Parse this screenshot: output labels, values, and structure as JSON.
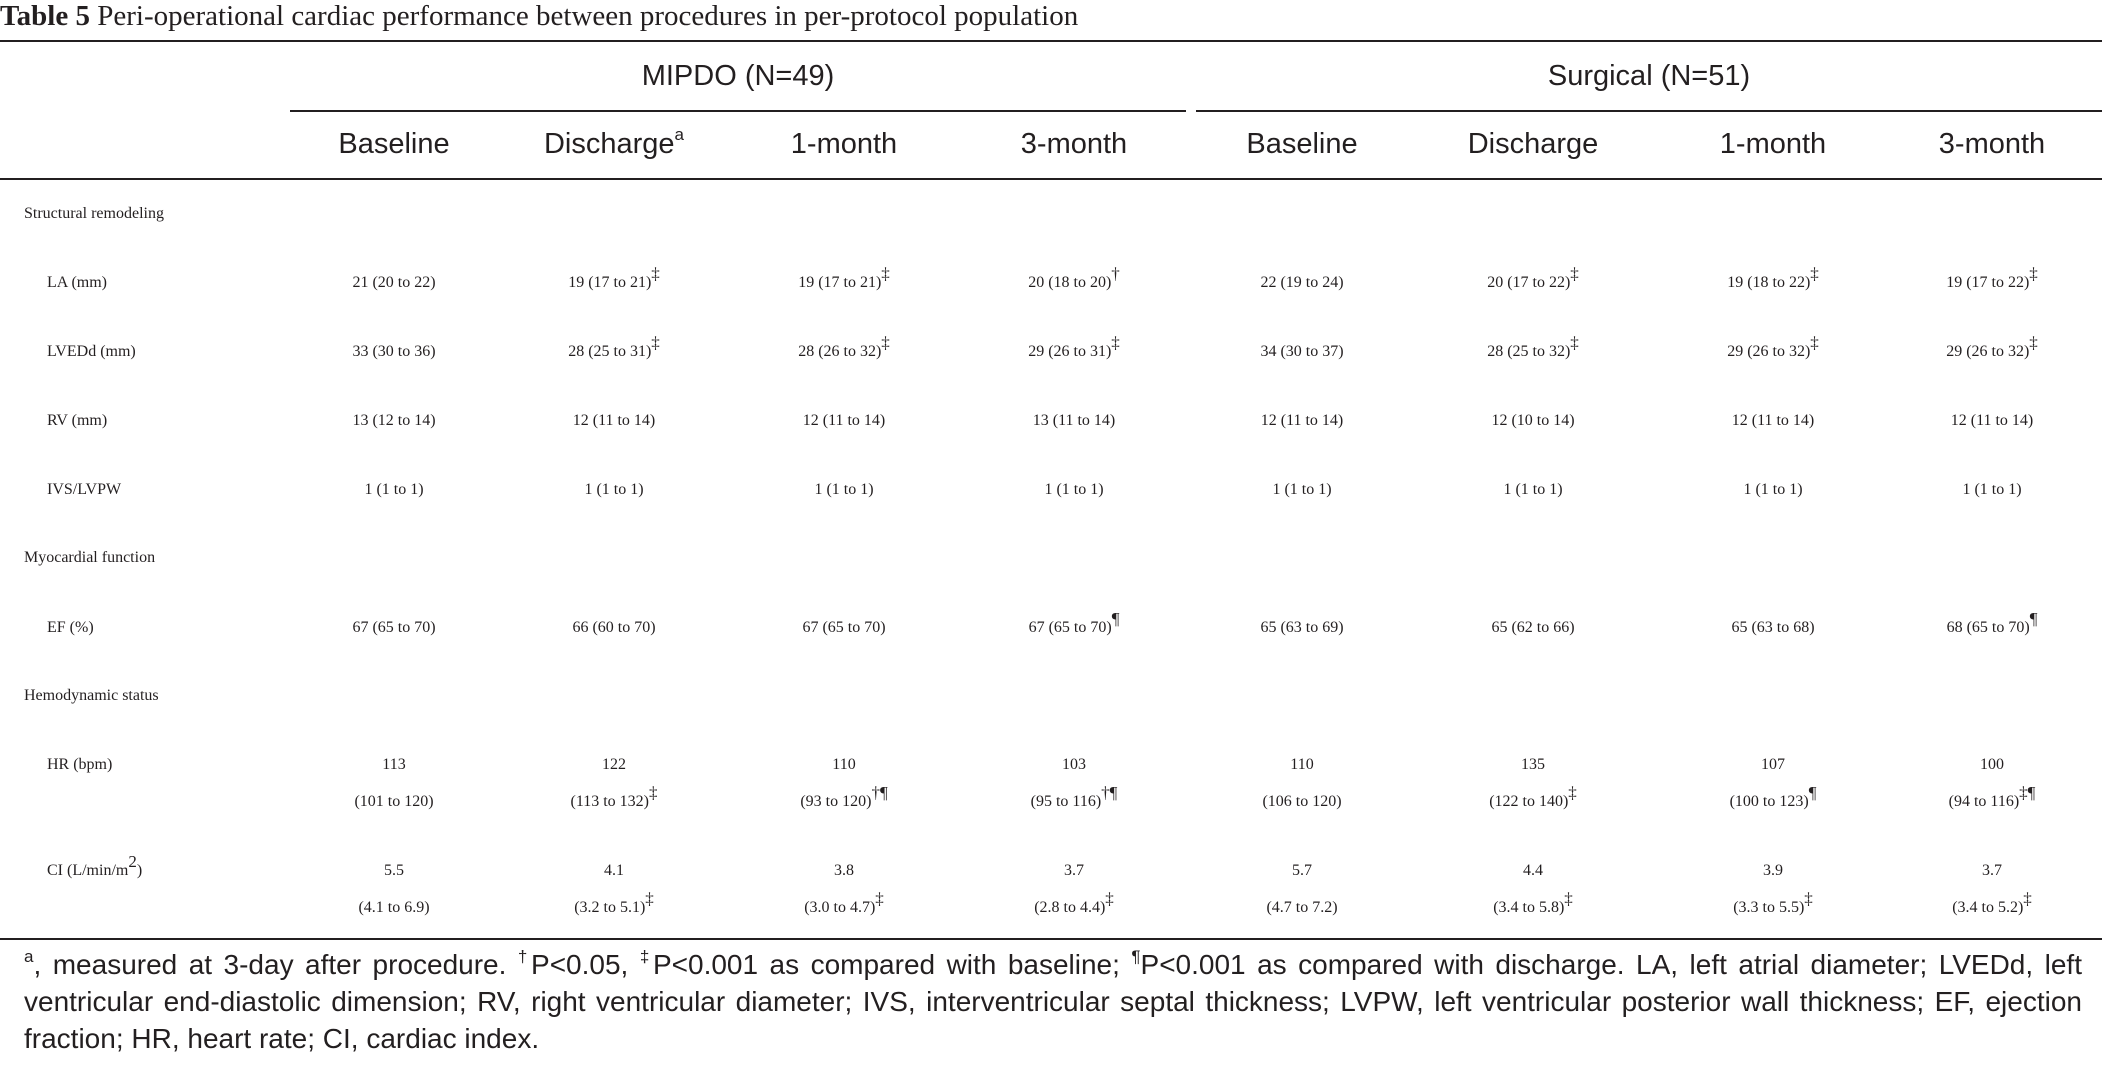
{
  "title": {
    "label": "Table 5",
    "text": "Peri-operational cardiac performance between procedures in per-protocol population"
  },
  "groups": [
    {
      "label": "MIPDO (N=49)"
    },
    {
      "label": "Surgical (N=51)"
    }
  ],
  "columns": [
    {
      "label": "Baseline",
      "sup": ""
    },
    {
      "label": "Discharge",
      "sup": "a"
    },
    {
      "label": "1-month",
      "sup": ""
    },
    {
      "label": "3-month",
      "sup": ""
    },
    {
      "label": "Baseline",
      "sup": ""
    },
    {
      "label": "Discharge",
      "sup": ""
    },
    {
      "label": "1-month",
      "sup": ""
    },
    {
      "label": "3-month",
      "sup": ""
    }
  ],
  "sections": [
    {
      "label": "Structural remodeling"
    },
    {
      "label": "Myocardial function"
    },
    {
      "label": "Hemodynamic status"
    }
  ],
  "rows": [
    {
      "label": "LA (mm)",
      "label_sup": "",
      "cells": [
        {
          "l1": "21 (20 to 22)",
          "l2": "",
          "sup": ""
        },
        {
          "l1": "19 (17 to 21)",
          "l2": "",
          "sup": "‡"
        },
        {
          "l1": "19 (17 to 21)",
          "l2": "",
          "sup": "‡"
        },
        {
          "l1": "20 (18 to 20)",
          "l2": "",
          "sup": "†"
        },
        {
          "l1": "22 (19 to 24)",
          "l2": "",
          "sup": ""
        },
        {
          "l1": "20 (17 to 22)",
          "l2": "",
          "sup": "‡"
        },
        {
          "l1": "19 (18 to 22)",
          "l2": "",
          "sup": "‡"
        },
        {
          "l1": "19 (17 to 22)",
          "l2": "",
          "sup": "‡"
        }
      ]
    },
    {
      "label": "LVEDd (mm)",
      "label_sup": "",
      "cells": [
        {
          "l1": "33 (30 to 36)",
          "l2": "",
          "sup": ""
        },
        {
          "l1": "28 (25 to 31)",
          "l2": "",
          "sup": "‡"
        },
        {
          "l1": "28 (26 to 32)",
          "l2": "",
          "sup": "‡"
        },
        {
          "l1": "29 (26 to 31)",
          "l2": "",
          "sup": "‡"
        },
        {
          "l1": "34 (30 to 37)",
          "l2": "",
          "sup": ""
        },
        {
          "l1": "28 (25 to 32)",
          "l2": "",
          "sup": "‡"
        },
        {
          "l1": "29 (26 to 32)",
          "l2": "",
          "sup": "‡"
        },
        {
          "l1": "29 (26 to 32)",
          "l2": "",
          "sup": "‡"
        }
      ]
    },
    {
      "label": "RV (mm)",
      "label_sup": "",
      "cells": [
        {
          "l1": "13 (12 to 14)",
          "l2": "",
          "sup": ""
        },
        {
          "l1": "12 (11 to 14)",
          "l2": "",
          "sup": ""
        },
        {
          "l1": "12 (11 to 14)",
          "l2": "",
          "sup": ""
        },
        {
          "l1": "13 (11 to 14)",
          "l2": "",
          "sup": ""
        },
        {
          "l1": "12 (11 to 14)",
          "l2": "",
          "sup": ""
        },
        {
          "l1": "12 (10 to 14)",
          "l2": "",
          "sup": ""
        },
        {
          "l1": "12 (11 to 14)",
          "l2": "",
          "sup": ""
        },
        {
          "l1": "12 (11 to 14)",
          "l2": "",
          "sup": ""
        }
      ]
    },
    {
      "label": "IVS/LVPW",
      "label_sup": "",
      "cells": [
        {
          "l1": "1 (1 to 1)",
          "l2": "",
          "sup": ""
        },
        {
          "l1": "1 (1 to 1)",
          "l2": "",
          "sup": ""
        },
        {
          "l1": "1 (1 to 1)",
          "l2": "",
          "sup": ""
        },
        {
          "l1": "1 (1 to 1)",
          "l2": "",
          "sup": ""
        },
        {
          "l1": "1 (1 to 1)",
          "l2": "",
          "sup": ""
        },
        {
          "l1": "1 (1 to 1)",
          "l2": "",
          "sup": ""
        },
        {
          "l1": "1 (1 to 1)",
          "l2": "",
          "sup": ""
        },
        {
          "l1": "1 (1 to 1)",
          "l2": "",
          "sup": ""
        }
      ]
    },
    {
      "label": "EF (%)",
      "label_sup": "",
      "cells": [
        {
          "l1": "67 (65 to 70)",
          "l2": "",
          "sup": ""
        },
        {
          "l1": "66 (60 to 70)",
          "l2": "",
          "sup": ""
        },
        {
          "l1": "67 (65 to 70)",
          "l2": "",
          "sup": ""
        },
        {
          "l1": "67 (65 to 70)",
          "l2": "",
          "sup": "¶"
        },
        {
          "l1": "65 (63 to 69)",
          "l2": "",
          "sup": ""
        },
        {
          "l1": "65 (62 to 66)",
          "l2": "",
          "sup": ""
        },
        {
          "l1": "65 (63 to 68)",
          "l2": "",
          "sup": ""
        },
        {
          "l1": "68 (65 to 70)",
          "l2": "",
          "sup": "¶"
        }
      ]
    },
    {
      "label": "HR (bpm)",
      "label_sup": "",
      "cells": [
        {
          "l1": "113",
          "l2": "(101 to 120)",
          "sup": ""
        },
        {
          "l1": "122",
          "l2": "(113 to 132)",
          "sup": "‡"
        },
        {
          "l1": "110",
          "l2": "(93 to 120)",
          "sup": "†¶"
        },
        {
          "l1": "103",
          "l2": "(95 to 116)",
          "sup": "†¶"
        },
        {
          "l1": "110",
          "l2": "(106 to 120)",
          "sup": ""
        },
        {
          "l1": "135",
          "l2": "(122 to 140)",
          "sup": "‡"
        },
        {
          "l1": "107",
          "l2": "(100 to 123)",
          "sup": "¶"
        },
        {
          "l1": "100",
          "l2": "(94 to 116)",
          "sup": "‡¶"
        }
      ]
    },
    {
      "label": "CI (L/min/m",
      "label_sup": "2",
      "label_tail": ")",
      "cells": [
        {
          "l1": "5.5",
          "l2": "(4.1 to 6.9)",
          "sup": ""
        },
        {
          "l1": "4.1",
          "l2": "(3.2 to 5.1)",
          "sup": "‡"
        },
        {
          "l1": "3.8",
          "l2": "(3.0 to 4.7)",
          "sup": "‡"
        },
        {
          "l1": "3.7",
          "l2": "(2.8 to 4.4)",
          "sup": "‡"
        },
        {
          "l1": "5.7",
          "l2": "(4.7 to 7.2)",
          "sup": ""
        },
        {
          "l1": "4.4",
          "l2": "(3.4 to 5.8)",
          "sup": "‡"
        },
        {
          "l1": "3.9",
          "l2": "(3.3 to 5.5)",
          "sup": "‡"
        },
        {
          "l1": "3.7",
          "l2": "(3.4 to 5.2)",
          "sup": "‡"
        }
      ]
    }
  ],
  "footnote": {
    "a_sup": "a",
    "a_text": ", measured at 3-day after procedure. ",
    "dagger_sup": "†",
    "dagger_text": "P<0.05, ",
    "ddagger_sup": "‡",
    "ddagger_text": "P<0.001 as compared with baseline; ",
    "pilcrow_sup": "¶",
    "pilcrow_text": "P<0.001 as compared with discharge. LA, left atrial diameter; LVEDd, left ventricular end-diastolic dimension; RV, right ventricular diameter; IVS, interventricular septal thickness; LVPW, left ventricular posterior wall thickness; EF, ejection fraction; HR, heart rate; CI, cardiac index."
  }
}
